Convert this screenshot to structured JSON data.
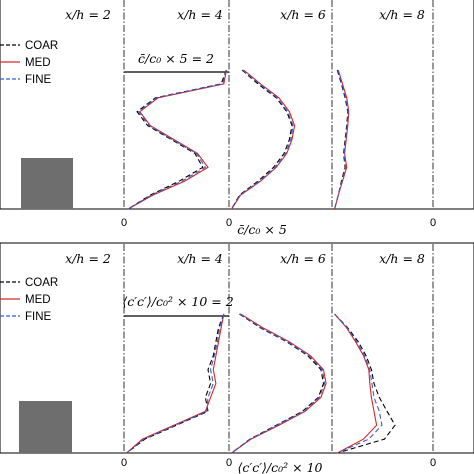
{
  "chart_data": [
    {
      "type": "line",
      "panel": "top",
      "stations": [
        "x/h = 2",
        "x/h = 4",
        "x/h = 6",
        "x/h = 8"
      ],
      "scale_label": "c̄/c₀ × 5 = 2",
      "xlabel": "c̄/c₀ × 5",
      "tick_labels": [
        "0",
        "0",
        "0"
      ],
      "legend": [
        "COAR",
        "MED",
        "FINE"
      ],
      "series": [
        {
          "name": "COAR",
          "color": "#000000",
          "dash": "5,3",
          "x4": [
            1.95,
            1.85,
            0.6,
            0.25,
            0.45,
            0.9,
            1.35,
            1.5,
            1.05,
            0.5,
            0.08
          ],
          "x6": [
            0.25,
            0.55,
            0.9,
            1.1,
            1.2,
            1.15,
            1.05,
            0.85,
            0.55,
            0.2,
            0.05
          ],
          "x8": [
            0.1,
            0.18,
            0.25,
            0.3,
            0.28,
            0.25,
            0.22,
            0.25,
            0.18,
            0.12,
            0.05
          ]
        },
        {
          "name": "MED",
          "color": "#d62728",
          "dash": "",
          "x4": [
            1.95,
            1.9,
            0.65,
            0.3,
            0.5,
            0.95,
            1.4,
            1.6,
            1.15,
            0.55,
            0.08
          ],
          "x6": [
            0.28,
            0.6,
            0.95,
            1.15,
            1.25,
            1.2,
            1.1,
            0.9,
            0.6,
            0.22,
            0.05
          ],
          "x8": [
            0.12,
            0.2,
            0.28,
            0.32,
            0.3,
            0.27,
            0.24,
            0.28,
            0.2,
            0.12,
            0.05
          ]
        },
        {
          "name": "FINE",
          "color": "#3b5bcc",
          "dash": "5,3",
          "x4": [
            1.95,
            1.88,
            0.62,
            0.28,
            0.48,
            0.92,
            1.38,
            1.55,
            1.1,
            0.52,
            0.08
          ],
          "x6": [
            0.26,
            0.58,
            0.92,
            1.12,
            1.22,
            1.18,
            1.08,
            0.88,
            0.58,
            0.21,
            0.05
          ],
          "x8": [
            0.11,
            0.19,
            0.26,
            0.31,
            0.29,
            0.26,
            0.23,
            0.26,
            0.19,
            0.12,
            0.05
          ]
        }
      ]
    },
    {
      "type": "line",
      "panel": "bottom",
      "stations": [
        "x/h = 2",
        "x/h = 4",
        "x/h = 6",
        "x/h = 8"
      ],
      "scale_label": "⟨c′c′⟩/c₀² × 10 = 2",
      "xlabel": "⟨c′c′⟩/c₀² × 10",
      "tick_labels": [
        "0",
        "0",
        "0"
      ],
      "legend": [
        "COAR",
        "MED",
        "FINE"
      ],
      "series": [
        {
          "name": "COAR",
          "color": "#000000",
          "dash": "5,3",
          "x4": [
            1.9,
            1.8,
            1.75,
            1.7,
            1.6,
            1.65,
            1.55,
            1.6,
            1.0,
            0.4,
            0.05
          ],
          "x6": [
            0.2,
            0.6,
            1.1,
            1.5,
            1.75,
            1.8,
            1.7,
            1.4,
            0.9,
            0.4,
            0.05
          ],
          "x8": [
            0.05,
            0.3,
            0.5,
            0.65,
            0.75,
            0.8,
            0.9,
            1.05,
            1.2,
            1.0,
            0.1
          ]
        },
        {
          "name": "MED",
          "color": "#d62728",
          "dash": "",
          "x4": [
            1.9,
            1.85,
            1.8,
            1.75,
            1.7,
            1.75,
            1.65,
            1.55,
            0.95,
            0.35,
            0.05
          ],
          "x6": [
            0.22,
            0.65,
            1.15,
            1.55,
            1.8,
            1.85,
            1.75,
            1.45,
            0.95,
            0.42,
            0.05
          ],
          "x8": [
            0.05,
            0.28,
            0.45,
            0.6,
            0.7,
            0.72,
            0.75,
            0.8,
            0.85,
            0.6,
            0.1
          ]
        },
        {
          "name": "FINE",
          "color": "#3b5bcc",
          "dash": "5,3",
          "x4": [
            1.9,
            1.82,
            1.78,
            1.72,
            1.65,
            1.7,
            1.6,
            1.58,
            0.98,
            0.38,
            0.05
          ],
          "x6": [
            0.21,
            0.62,
            1.12,
            1.52,
            1.78,
            1.82,
            1.72,
            1.42,
            0.92,
            0.41,
            0.05
          ],
          "x8": [
            0.05,
            0.29,
            0.47,
            0.62,
            0.72,
            0.76,
            0.8,
            0.9,
            0.95,
            0.7,
            0.1
          ]
        }
      ]
    }
  ]
}
